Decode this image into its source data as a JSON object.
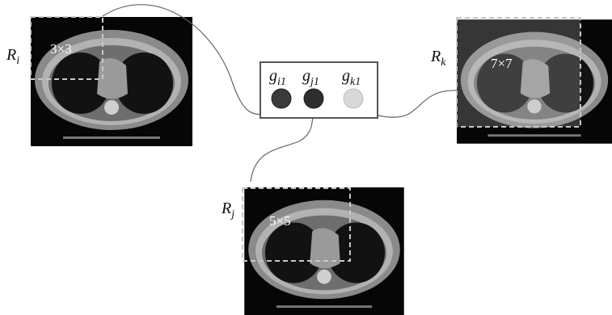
{
  "regions": [
    {
      "label": {
        "base": "R",
        "sub": "i"
      },
      "window": "3×3"
    },
    {
      "label": {
        "base": "R",
        "sub": "j"
      },
      "window": "5×5"
    },
    {
      "label": {
        "base": "R",
        "sub": "k"
      },
      "window": "7×7"
    }
  ],
  "features": [
    {
      "base": "g",
      "sub": "i1"
    },
    {
      "base": "g",
      "sub": "j1"
    },
    {
      "base": "g",
      "sub": "k1"
    }
  ]
}
